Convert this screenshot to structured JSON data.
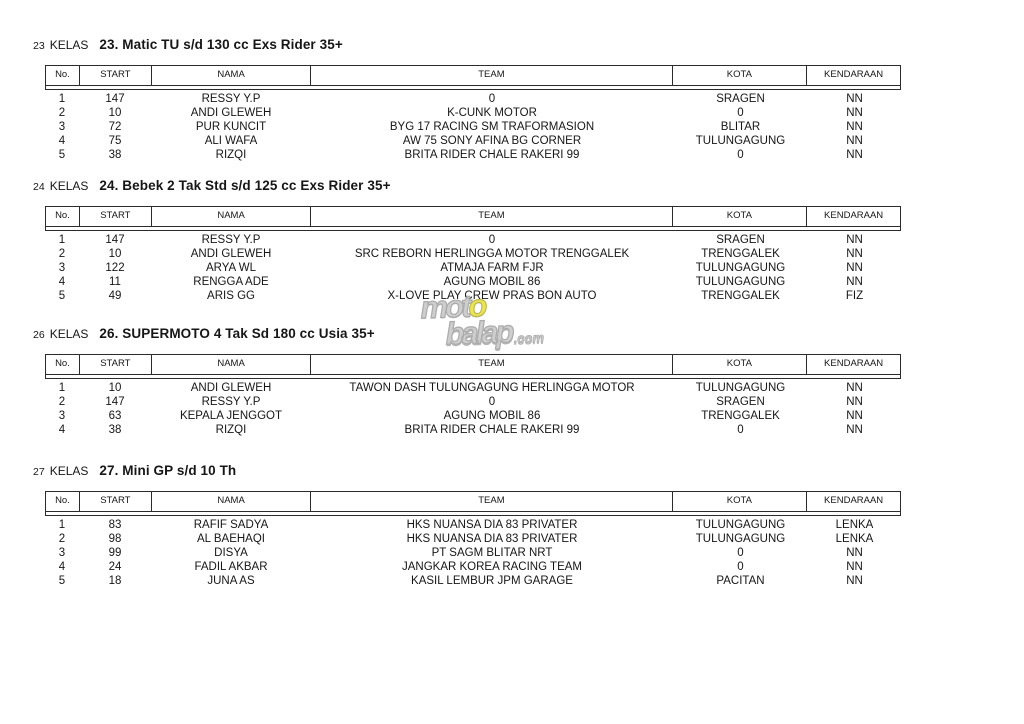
{
  "columns": [
    {
      "key": "no",
      "label": "No."
    },
    {
      "key": "start",
      "label": "START"
    },
    {
      "key": "nama",
      "label": "NAMA"
    },
    {
      "key": "team",
      "label": "TEAM"
    },
    {
      "key": "kota",
      "label": "KOTA"
    },
    {
      "key": "kendaraan",
      "label": "KENDARAAN"
    }
  ],
  "sections": [
    {
      "kelas_no": "23",
      "kelas_word": "KELAS",
      "title": "23. Matic TU s/d 130 cc Exs Rider 35+",
      "rows": [
        {
          "no": "1",
          "start": "147",
          "nama": "RESSY Y.P",
          "team": "0",
          "kota": "SRAGEN",
          "kendaraan": "NN"
        },
        {
          "no": "2",
          "start": "10",
          "nama": "ANDI GLEWEH",
          "team": "K-CUNK MOTOR",
          "kota": "0",
          "kendaraan": "NN"
        },
        {
          "no": "3",
          "start": "72",
          "nama": "PUR KUNCIT",
          "team": "BYG 17 RACING SM TRAFORMASION",
          "kota": "BLITAR",
          "kendaraan": "NN"
        },
        {
          "no": "4",
          "start": "75",
          "nama": "ALI WAFA",
          "team": "AW 75 SONY AFINA BG CORNER",
          "kota": "TULUNGAGUNG",
          "kendaraan": "NN"
        },
        {
          "no": "5",
          "start": "38",
          "nama": "RIZQI",
          "team": "BRITA RIDER CHALE RAKERI 99",
          "kota": "0",
          "kendaraan": "NN"
        }
      ]
    },
    {
      "kelas_no": "24",
      "kelas_word": "KELAS",
      "title": "24. Bebek 2 Tak Std s/d 125 cc Exs Rider 35+",
      "rows": [
        {
          "no": "1",
          "start": "147",
          "nama": "RESSY Y.P",
          "team": "0",
          "kota": "SRAGEN",
          "kendaraan": "NN"
        },
        {
          "no": "2",
          "start": "10",
          "nama": "ANDI GLEWEH",
          "team": "SRC REBORN HERLINGGA MOTOR TRENGGALEK",
          "kota": "TRENGGALEK",
          "kendaraan": "NN"
        },
        {
          "no": "3",
          "start": "122",
          "nama": "ARYA WL",
          "team": "ATMAJA FARM FJR",
          "kota": "TULUNGAGUNG",
          "kendaraan": "NN"
        },
        {
          "no": "4",
          "start": "11",
          "nama": "RENGGA ADE",
          "team": "AGUNG MOBIL 86",
          "kota": "TULUNGAGUNG",
          "kendaraan": "NN"
        },
        {
          "no": "5",
          "start": "49",
          "nama": "ARIS GG",
          "team": "X-LOVE PLAY CREW PRAS BON AUTO",
          "kota": "TRENGGALEK",
          "kendaraan": "FIZ"
        }
      ]
    },
    {
      "kelas_no": "26",
      "kelas_word": "KELAS",
      "title": "26. SUPERMOTO 4 Tak Sd 180 cc Usia 35+",
      "rows": [
        {
          "no": "1",
          "start": "10",
          "nama": "ANDI GLEWEH",
          "team": "TAWON DASH TULUNGAGUNG HERLINGGA MOTOR",
          "kota": "TULUNGAGUNG",
          "kendaraan": "NN"
        },
        {
          "no": "2",
          "start": "147",
          "nama": "RESSY Y.P",
          "team": "0",
          "kota": "SRAGEN",
          "kendaraan": "NN"
        },
        {
          "no": "3",
          "start": "63",
          "nama": "KEPALA JENGGOT",
          "team": "AGUNG MOBIL 86",
          "kota": "TRENGGALEK",
          "kendaraan": "NN"
        },
        {
          "no": "4",
          "start": "38",
          "nama": "RIZQI",
          "team": "BRITA RIDER CHALE RAKERI 99",
          "kota": "0",
          "kendaraan": "NN"
        }
      ]
    },
    {
      "kelas_no": "27",
      "kelas_word": "KELAS",
      "title": "27. Mini GP s/d 10 Th",
      "rows": [
        {
          "no": "1",
          "start": "83",
          "nama": "RAFIF SADYA",
          "team": "HKS NUANSA DIA 83 PRIVATER",
          "kota": "TULUNGAGUNG",
          "kendaraan": "LENKA"
        },
        {
          "no": "2",
          "start": "98",
          "nama": "AL BAEHAQI",
          "team": "HKS NUANSA DIA 83 PRIVATER",
          "kota": "TULUNGAGUNG",
          "kendaraan": "LENKA"
        },
        {
          "no": "3",
          "start": "99",
          "nama": "DISYA",
          "team": "PT SAGM BLITAR NRT",
          "kota": "0",
          "kendaraan": "NN"
        },
        {
          "no": "4",
          "start": "24",
          "nama": "FADIL AKBAR",
          "team": "JANGKAR KOREA RACING TEAM",
          "kota": "0",
          "kendaraan": "NN"
        },
        {
          "no": "5",
          "start": "18",
          "nama": "JUNA AS",
          "team": "KASIL LEMBUR JPM GARAGE",
          "kota": "PACITAN",
          "kendaraan": "NN"
        }
      ]
    }
  ],
  "watermark": {
    "part1": "mot",
    "part2": "o",
    "part3": "balap",
    "part4": ".com",
    "gray": "#c9c9c9",
    "yellow": "#e8e24a"
  }
}
